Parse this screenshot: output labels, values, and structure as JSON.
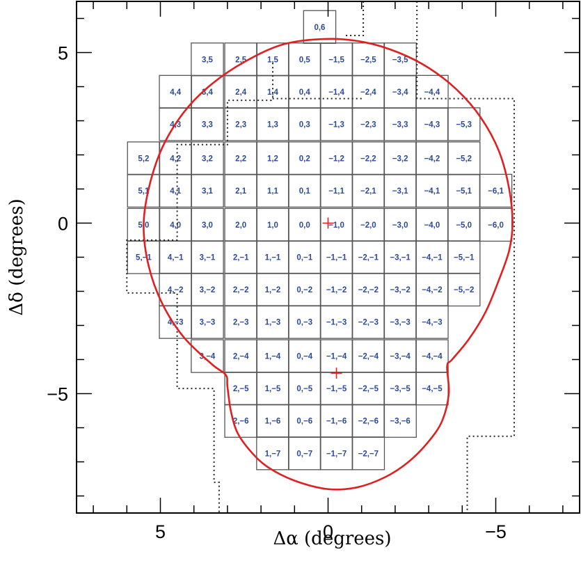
{
  "chart_data": {
    "type": "scatter",
    "title": "",
    "xlabel": "Δα (degrees)",
    "ylabel": "Δδ (degrees)",
    "xlim": [
      7.5,
      -7.5
    ],
    "ylim": [
      -8.5,
      6.5
    ],
    "x_axis_reversed": true,
    "x_ticks": [
      5,
      0,
      -5
    ],
    "x_tick_labels": [
      "5",
      "0",
      "−5"
    ],
    "y_ticks": [
      5,
      0,
      -5
    ],
    "y_tick_labels": [
      "5",
      "0",
      "−5"
    ],
    "grid": false,
    "field_size_deg": 0.96,
    "field_stroke_color": "#555555",
    "label_color": "#2a4a9a",
    "fields": [
      {
        "label": "0,6",
        "x": 0.25,
        "y": 5.75
      },
      {
        "label": "3,5",
        "x": 3.6,
        "y": 4.8
      },
      {
        "label": "2,5",
        "x": 2.6,
        "y": 4.8
      },
      {
        "label": "1,5",
        "x": 1.65,
        "y": 4.8
      },
      {
        "label": "0,5",
        "x": 0.7,
        "y": 4.8
      },
      {
        "label": "−1,5",
        "x": -0.25,
        "y": 4.8
      },
      {
        "label": "−2,5",
        "x": -1.2,
        "y": 4.8
      },
      {
        "label": "−3,5",
        "x": -2.15,
        "y": 4.8
      },
      {
        "label": "4,4",
        "x": 4.55,
        "y": 3.85
      },
      {
        "label": "3,4",
        "x": 3.6,
        "y": 3.85
      },
      {
        "label": "2,4",
        "x": 2.6,
        "y": 3.85
      },
      {
        "label": "1,4",
        "x": 1.65,
        "y": 3.85
      },
      {
        "label": "0,4",
        "x": 0.7,
        "y": 3.85
      },
      {
        "label": "−1,4",
        "x": -0.25,
        "y": 3.85
      },
      {
        "label": "−2,4",
        "x": -1.2,
        "y": 3.85
      },
      {
        "label": "−3,4",
        "x": -2.15,
        "y": 3.85
      },
      {
        "label": "−4,4",
        "x": -3.1,
        "y": 3.85
      },
      {
        "label": "4,3",
        "x": 4.55,
        "y": 2.9
      },
      {
        "label": "3,3",
        "x": 3.6,
        "y": 2.9
      },
      {
        "label": "2,3",
        "x": 2.6,
        "y": 2.9
      },
      {
        "label": "1,3",
        "x": 1.65,
        "y": 2.9
      },
      {
        "label": "0,3",
        "x": 0.7,
        "y": 2.9
      },
      {
        "label": "−1,3",
        "x": -0.25,
        "y": 2.9
      },
      {
        "label": "−2,3",
        "x": -1.2,
        "y": 2.9
      },
      {
        "label": "−3,3",
        "x": -2.15,
        "y": 2.9
      },
      {
        "label": "−4,3",
        "x": -3.1,
        "y": 2.9
      },
      {
        "label": "−5,3",
        "x": -4.05,
        "y": 2.9
      },
      {
        "label": "5,2",
        "x": 5.5,
        "y": 1.9
      },
      {
        "label": "4,2",
        "x": 4.55,
        "y": 1.9
      },
      {
        "label": "3,2",
        "x": 3.6,
        "y": 1.9
      },
      {
        "label": "2,2",
        "x": 2.6,
        "y": 1.9
      },
      {
        "label": "1,2",
        "x": 1.65,
        "y": 1.9
      },
      {
        "label": "0,2",
        "x": 0.7,
        "y": 1.9
      },
      {
        "label": "−1,2",
        "x": -0.25,
        "y": 1.9
      },
      {
        "label": "−2,2",
        "x": -1.2,
        "y": 1.9
      },
      {
        "label": "−3,2",
        "x": -2.15,
        "y": 1.9
      },
      {
        "label": "−4,2",
        "x": -3.1,
        "y": 1.9
      },
      {
        "label": "−5,2",
        "x": -4.05,
        "y": 1.9
      },
      {
        "label": "5,1",
        "x": 5.5,
        "y": 0.95
      },
      {
        "label": "4,1",
        "x": 4.55,
        "y": 0.95
      },
      {
        "label": "3,1",
        "x": 3.6,
        "y": 0.95
      },
      {
        "label": "2,1",
        "x": 2.6,
        "y": 0.95
      },
      {
        "label": "1,1",
        "x": 1.65,
        "y": 0.95
      },
      {
        "label": "0,1",
        "x": 0.7,
        "y": 0.95
      },
      {
        "label": "−1,1",
        "x": -0.25,
        "y": 0.95
      },
      {
        "label": "−2,1",
        "x": -1.2,
        "y": 0.95
      },
      {
        "label": "−3,1",
        "x": -2.15,
        "y": 0.95
      },
      {
        "label": "−4,1",
        "x": -3.1,
        "y": 0.95
      },
      {
        "label": "−5,1",
        "x": -4.05,
        "y": 0.95
      },
      {
        "label": "−6,1",
        "x": -5.0,
        "y": 0.95
      },
      {
        "label": "5,0",
        "x": 5.5,
        "y": -0.05
      },
      {
        "label": "4,0",
        "x": 4.55,
        "y": -0.05
      },
      {
        "label": "3,0",
        "x": 3.6,
        "y": -0.05
      },
      {
        "label": "2,0",
        "x": 2.6,
        "y": -0.05
      },
      {
        "label": "1,0",
        "x": 1.65,
        "y": -0.05
      },
      {
        "label": "0,0",
        "x": 0.7,
        "y": -0.05
      },
      {
        "label": "−1,0",
        "x": -0.25,
        "y": -0.05
      },
      {
        "label": "−2,0",
        "x": -1.2,
        "y": -0.05
      },
      {
        "label": "−3,0",
        "x": -2.15,
        "y": -0.05
      },
      {
        "label": "−4,0",
        "x": -3.1,
        "y": -0.05
      },
      {
        "label": "−5,0",
        "x": -4.05,
        "y": -0.05
      },
      {
        "label": "−6,0",
        "x": -5.0,
        "y": -0.05
      },
      {
        "label": "5,−1",
        "x": 5.5,
        "y": -1.0
      },
      {
        "label": "4,−1",
        "x": 4.55,
        "y": -1.0
      },
      {
        "label": "3,−1",
        "x": 3.6,
        "y": -1.0
      },
      {
        "label": "2,−1",
        "x": 2.6,
        "y": -1.0
      },
      {
        "label": "1,−1",
        "x": 1.65,
        "y": -1.0
      },
      {
        "label": "0,−1",
        "x": 0.7,
        "y": -1.0
      },
      {
        "label": "−1,−1",
        "x": -0.25,
        "y": -1.0
      },
      {
        "label": "−2,−1",
        "x": -1.2,
        "y": -1.0
      },
      {
        "label": "−3,−1",
        "x": -2.15,
        "y": -1.0
      },
      {
        "label": "−4,−1",
        "x": -3.1,
        "y": -1.0
      },
      {
        "label": "−5,−1",
        "x": -4.05,
        "y": -1.0
      },
      {
        "label": "4,−2",
        "x": 4.55,
        "y": -1.95
      },
      {
        "label": "3,−2",
        "x": 3.6,
        "y": -1.95
      },
      {
        "label": "2,−2",
        "x": 2.6,
        "y": -1.95
      },
      {
        "label": "1,−2",
        "x": 1.65,
        "y": -1.95
      },
      {
        "label": "0,−2",
        "x": 0.7,
        "y": -1.95
      },
      {
        "label": "−1,−2",
        "x": -0.25,
        "y": -1.95
      },
      {
        "label": "−2,−2",
        "x": -1.2,
        "y": -1.95
      },
      {
        "label": "−3,−2",
        "x": -2.15,
        "y": -1.95
      },
      {
        "label": "−4,−2",
        "x": -3.1,
        "y": -1.95
      },
      {
        "label": "−5,−2",
        "x": -4.05,
        "y": -1.95
      },
      {
        "label": "4,−3",
        "x": 4.55,
        "y": -2.9
      },
      {
        "label": "3,−3",
        "x": 3.6,
        "y": -2.9
      },
      {
        "label": "2,−3",
        "x": 2.6,
        "y": -2.9
      },
      {
        "label": "1,−3",
        "x": 1.65,
        "y": -2.9
      },
      {
        "label": "0,−3",
        "x": 0.7,
        "y": -2.9
      },
      {
        "label": "−1,−3",
        "x": -0.25,
        "y": -2.9
      },
      {
        "label": "−2,−3",
        "x": -1.2,
        "y": -2.9
      },
      {
        "label": "−3,−3",
        "x": -2.15,
        "y": -2.9
      },
      {
        "label": "−4,−3",
        "x": -3.1,
        "y": -2.9
      },
      {
        "label": "3,−4",
        "x": 3.6,
        "y": -3.9
      },
      {
        "label": "2,−4",
        "x": 2.6,
        "y": -3.9
      },
      {
        "label": "1,−4",
        "x": 1.65,
        "y": -3.9
      },
      {
        "label": "0,−4",
        "x": 0.7,
        "y": -3.9
      },
      {
        "label": "−1,−4",
        "x": -0.25,
        "y": -3.9
      },
      {
        "label": "−2,−4",
        "x": -1.2,
        "y": -3.9
      },
      {
        "label": "−3,−4",
        "x": -2.15,
        "y": -3.9
      },
      {
        "label": "−4,−4",
        "x": -3.1,
        "y": -3.9
      },
      {
        "label": "2,−5",
        "x": 2.6,
        "y": -4.85
      },
      {
        "label": "1,−5",
        "x": 1.65,
        "y": -4.85
      },
      {
        "label": "0,−5",
        "x": 0.7,
        "y": -4.85
      },
      {
        "label": "−1,−5",
        "x": -0.25,
        "y": -4.85
      },
      {
        "label": "−2,−5",
        "x": -1.2,
        "y": -4.85
      },
      {
        "label": "−3,−5",
        "x": -2.15,
        "y": -4.85
      },
      {
        "label": "−4,−5",
        "x": -3.1,
        "y": -4.85
      },
      {
        "label": "2,−6",
        "x": 2.6,
        "y": -5.8
      },
      {
        "label": "1,−6",
        "x": 1.65,
        "y": -5.8
      },
      {
        "label": "0,−6",
        "x": 0.7,
        "y": -5.8
      },
      {
        "label": "−1,−6",
        "x": -0.25,
        "y": -5.8
      },
      {
        "label": "−2,−6",
        "x": -1.2,
        "y": -5.8
      },
      {
        "label": "−3,−6",
        "x": -2.15,
        "y": -5.8
      },
      {
        "label": "1,−7",
        "x": 1.65,
        "y": -6.75
      },
      {
        "label": "0,−7",
        "x": 0.7,
        "y": -6.75
      },
      {
        "label": "−1,−7",
        "x": -0.25,
        "y": -6.75
      },
      {
        "label": "−2,−7",
        "x": -1.2,
        "y": -6.75
      }
    ],
    "markers": [
      {
        "x": 0.0,
        "y": 0.0,
        "symbol": "+",
        "color": "#e02020"
      },
      {
        "x": -0.25,
        "y": -4.4,
        "symbol": "+",
        "color": "#e02020"
      }
    ],
    "boundary_color": "#e02020",
    "boundary": [
      [
        0.0,
        5.4
      ],
      [
        1.3,
        5.25
      ],
      [
        2.45,
        4.75
      ],
      [
        3.5,
        4.05
      ],
      [
        4.3,
        3.25
      ],
      [
        4.95,
        2.2
      ],
      [
        5.35,
        1.0
      ],
      [
        5.5,
        -0.1
      ],
      [
        5.35,
        -1.25
      ],
      [
        4.95,
        -2.35
      ],
      [
        4.3,
        -3.35
      ],
      [
        3.45,
        -4.15
      ],
      [
        3.05,
        -4.45
      ],
      [
        3.0,
        -4.8
      ],
      [
        2.9,
        -5.5
      ],
      [
        2.7,
        -6.15
      ],
      [
        2.3,
        -6.7
      ],
      [
        1.8,
        -7.15
      ],
      [
        1.0,
        -7.55
      ],
      [
        0.0,
        -7.8
      ],
      [
        -0.85,
        -7.75
      ],
      [
        -1.7,
        -7.45
      ],
      [
        -2.4,
        -7.0
      ],
      [
        -3.0,
        -6.4
      ],
      [
        -3.4,
        -5.8
      ],
      [
        -3.6,
        -5.0
      ],
      [
        -3.55,
        -4.2
      ],
      [
        -3.7,
        -4.0
      ],
      [
        -4.2,
        -3.4
      ],
      [
        -4.7,
        -2.6
      ],
      [
        -5.1,
        -1.65
      ],
      [
        -5.4,
        -0.8
      ],
      [
        -5.5,
        0.0
      ],
      [
        -5.4,
        1.0
      ],
      [
        -5.1,
        2.1
      ],
      [
        -4.55,
        3.1
      ],
      [
        -3.85,
        3.9
      ],
      [
        -3.0,
        4.55
      ],
      [
        -2.1,
        5.0
      ],
      [
        -1.1,
        5.3
      ],
      [
        0.0,
        5.4
      ]
    ],
    "dotted_color": "#222222",
    "dotted_left": [
      [
        -1.05,
        6.5
      ],
      [
        -1.05,
        5.5
      ],
      [
        -0.5,
        5.5
      ]
    ],
    "dotted_right_upper": [
      [
        -2.65,
        6.5
      ],
      [
        -2.65,
        3.65
      ],
      [
        -3.0,
        3.65
      ],
      [
        -5.55,
        3.65
      ],
      [
        -5.55,
        -6.25
      ],
      [
        -4.15,
        -6.25
      ],
      [
        -4.15,
        -8.5
      ]
    ],
    "dotted_far_left": [
      [
        -1.0,
        3.65
      ],
      [
        1.7,
        3.65
      ],
      [
        1.7,
        3.6
      ],
      [
        3.0,
        3.6
      ],
      [
        3.0,
        2.3
      ],
      [
        3.4,
        2.3
      ],
      [
        3.4,
        2.3
      ],
      [
        4.5,
        2.3
      ],
      [
        4.5,
        -0.5
      ],
      [
        6.0,
        -0.5
      ],
      [
        6.0,
        -2.05
      ],
      [
        4.5,
        -2.05
      ],
      [
        4.5,
        -4.85
      ],
      [
        3.4,
        -4.85
      ],
      [
        3.4,
        -7.6
      ],
      [
        3.25,
        -7.6
      ],
      [
        3.25,
        -8.5
      ]
    ],
    "dotted_top_mid": [
      [
        1.65,
        4.7
      ],
      [
        1.65,
        3.6
      ]
    ]
  }
}
